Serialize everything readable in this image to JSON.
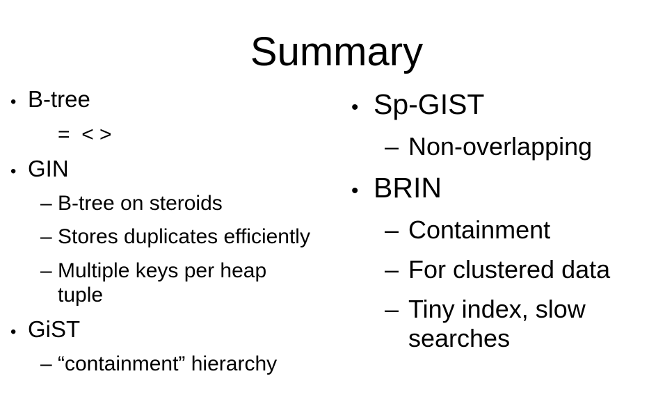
{
  "slide": {
    "title": "Summary",
    "columns": [
      {
        "items": [
          {
            "marker": "•",
            "text": "B-tree"
          },
          {
            "marker": "",
            "text": "=  < >"
          },
          {
            "marker": "•",
            "text": "GIN"
          },
          {
            "marker": "–",
            "text": "B-tree on steroids"
          },
          {
            "marker": "–",
            "text": "Stores duplicates efficiently"
          },
          {
            "marker": "–",
            "text": "Multiple keys per heap\ntuple"
          },
          {
            "marker": "•",
            "text": "GiST"
          },
          {
            "marker": "–",
            "text": "“containment” hierarchy"
          }
        ]
      },
      {
        "items": [
          {
            "marker": "•",
            "text": "Sp-GIST"
          },
          {
            "marker": "–",
            "text": "Non-overlapping"
          },
          {
            "marker": "•",
            "text": "BRIN"
          },
          {
            "marker": "–",
            "text": "Containment"
          },
          {
            "marker": "–",
            "text": "For clustered data"
          },
          {
            "marker": "–",
            "text": "Tiny index, slow\nsearches"
          }
        ]
      }
    ]
  },
  "colors": {
    "text": "#000000",
    "background": "#ffffff"
  }
}
